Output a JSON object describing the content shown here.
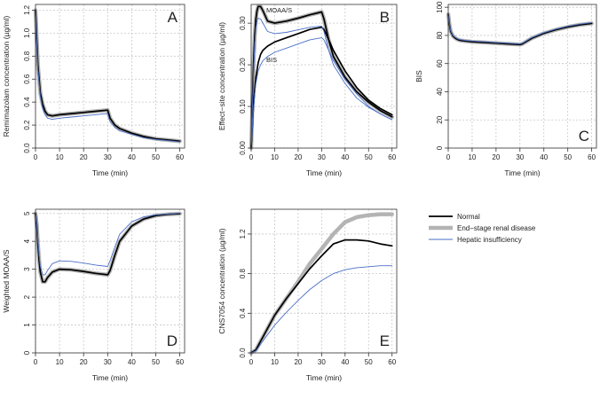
{
  "colors": {
    "normal": "#000000",
    "esrd": "#b4b4b4",
    "hepatic": "#4a6fc7",
    "grid": "#c8c8c8"
  },
  "legend": {
    "normal": "Normal",
    "esrd": "End−stage renal disease",
    "hepatic": "Hepatic insufficiency"
  },
  "chart_data": [
    {
      "id": "A",
      "type": "line",
      "panel_label": "A",
      "xlabel": "Time (min)",
      "ylabel": "Remimazolam concentration (µg/ml)",
      "xlim": [
        0,
        62
      ],
      "ylim": [
        0,
        1.25
      ],
      "xticks": [
        0,
        10,
        20,
        30,
        40,
        50,
        60
      ],
      "yticks": [
        {
          "v": 0,
          "t": "0.0"
        },
        {
          "v": 0.2,
          "t": "0.2"
        },
        {
          "v": 0.4,
          "t": "0.4"
        },
        {
          "v": 0.6,
          "t": "0.6"
        },
        {
          "v": 0.8,
          "t": "0.8"
        },
        {
          "v": 1.0,
          "t": "1.0"
        },
        {
          "v": 1.2,
          "t": "1.2"
        }
      ],
      "grid": true,
      "series": [
        {
          "name": "Normal",
          "x": [
            0,
            0.5,
            1,
            2,
            3,
            4,
            5,
            7,
            10,
            15,
            20,
            25,
            30,
            31,
            33,
            35,
            40,
            45,
            50,
            55,
            60
          ],
          "y": [
            1.2,
            0.95,
            0.72,
            0.48,
            0.38,
            0.32,
            0.29,
            0.28,
            0.29,
            0.3,
            0.31,
            0.32,
            0.33,
            0.26,
            0.2,
            0.17,
            0.13,
            0.1,
            0.08,
            0.07,
            0.06
          ]
        },
        {
          "name": "End−stage renal disease",
          "x": [
            0,
            0.5,
            1,
            2,
            3,
            4,
            5,
            7,
            10,
            15,
            20,
            25,
            30,
            31,
            33,
            35,
            40,
            45,
            50,
            55,
            60
          ],
          "y": [
            1.2,
            0.95,
            0.72,
            0.48,
            0.38,
            0.32,
            0.29,
            0.28,
            0.29,
            0.3,
            0.31,
            0.32,
            0.33,
            0.26,
            0.2,
            0.17,
            0.13,
            0.1,
            0.08,
            0.07,
            0.06
          ]
        },
        {
          "name": "Hepatic insufficiency",
          "x": [
            0,
            0.5,
            1,
            2,
            3,
            4,
            5,
            7,
            10,
            15,
            20,
            25,
            30,
            31,
            33,
            35,
            40,
            45,
            50,
            55,
            60
          ],
          "y": [
            1.2,
            0.93,
            0.69,
            0.45,
            0.34,
            0.29,
            0.26,
            0.25,
            0.26,
            0.27,
            0.28,
            0.29,
            0.3,
            0.23,
            0.18,
            0.15,
            0.12,
            0.09,
            0.075,
            0.065,
            0.055
          ]
        }
      ]
    },
    {
      "id": "B",
      "type": "line",
      "panel_label": "B",
      "xlabel": "Time (min)",
      "ylabel": "Effect−site concentration (µg/ml)",
      "xlim": [
        0,
        62
      ],
      "ylim": [
        0,
        0.345
      ],
      "xticks": [
        0,
        10,
        20,
        30,
        40,
        50,
        60
      ],
      "yticks": [
        {
          "v": 0,
          "t": "0.00"
        },
        {
          "v": 0.1,
          "t": "0.10"
        },
        {
          "v": 0.2,
          "t": "0.20"
        },
        {
          "v": 0.3,
          "t": "0.30"
        }
      ],
      "grid": true,
      "annotations": [
        "MOAA/S",
        "BIS"
      ],
      "series": [
        {
          "name": "Normal – MOAA/S",
          "x": [
            0,
            0.5,
            1,
            1.5,
            2,
            2.5,
            3,
            4,
            5,
            7,
            10,
            15,
            20,
            25,
            30,
            31,
            33,
            35,
            40,
            45,
            50,
            55,
            60
          ],
          "y": [
            0,
            0.1,
            0.2,
            0.27,
            0.31,
            0.33,
            0.34,
            0.34,
            0.33,
            0.305,
            0.3,
            0.305,
            0.312,
            0.32,
            0.327,
            0.31,
            0.26,
            0.22,
            0.17,
            0.135,
            0.11,
            0.09,
            0.075
          ]
        },
        {
          "name": "Normal – BIS",
          "x": [
            0,
            0.5,
            1,
            1.5,
            2,
            3,
            4,
            5,
            7,
            10,
            15,
            20,
            25,
            30,
            31,
            33,
            35,
            40,
            45,
            50,
            55,
            60
          ],
          "y": [
            0,
            0.05,
            0.1,
            0.14,
            0.17,
            0.205,
            0.225,
            0.235,
            0.245,
            0.255,
            0.265,
            0.275,
            0.285,
            0.29,
            0.285,
            0.26,
            0.235,
            0.185,
            0.145,
            0.115,
            0.095,
            0.08
          ]
        },
        {
          "name": "End−stage renal disease – MOAA/S",
          "x": [
            0,
            0.5,
            1,
            1.5,
            2,
            2.5,
            3,
            4,
            5,
            7,
            10,
            15,
            20,
            25,
            30,
            31,
            33,
            35,
            40,
            45,
            50,
            55,
            60
          ],
          "y": [
            0,
            0.1,
            0.2,
            0.27,
            0.31,
            0.33,
            0.34,
            0.34,
            0.33,
            0.305,
            0.3,
            0.305,
            0.312,
            0.32,
            0.327,
            0.31,
            0.26,
            0.22,
            0.17,
            0.135,
            0.11,
            0.09,
            0.075
          ]
        },
        {
          "name": "Hepatic insufficiency – MOAA/S",
          "x": [
            0,
            0.5,
            1,
            1.5,
            2,
            2.5,
            3,
            4,
            5,
            7,
            10,
            15,
            20,
            25,
            30,
            31,
            33,
            35,
            40,
            45,
            50,
            55,
            60
          ],
          "y": [
            0,
            0.09,
            0.18,
            0.25,
            0.29,
            0.305,
            0.312,
            0.31,
            0.3,
            0.28,
            0.275,
            0.278,
            0.284,
            0.29,
            0.293,
            0.28,
            0.235,
            0.2,
            0.155,
            0.12,
            0.098,
            0.082,
            0.068
          ]
        },
        {
          "name": "Hepatic insufficiency – BIS",
          "x": [
            0,
            0.5,
            1,
            1.5,
            2,
            3,
            4,
            5,
            7,
            10,
            15,
            20,
            25,
            30,
            31,
            33,
            35,
            40,
            45,
            50,
            55,
            60
          ],
          "y": [
            0,
            0.045,
            0.09,
            0.13,
            0.155,
            0.185,
            0.2,
            0.21,
            0.22,
            0.23,
            0.24,
            0.25,
            0.26,
            0.265,
            0.26,
            0.235,
            0.21,
            0.165,
            0.13,
            0.1,
            0.082,
            0.068
          ]
        }
      ]
    },
    {
      "id": "C",
      "type": "line",
      "panel_label": "C",
      "xlabel": "Time (min)",
      "ylabel": "BIS",
      "xlim": [
        0,
        62
      ],
      "ylim": [
        0,
        102
      ],
      "xticks": [
        0,
        10,
        20,
        30,
        40,
        50,
        60
      ],
      "yticks": [
        {
          "v": 0,
          "t": "0"
        },
        {
          "v": 20,
          "t": "20"
        },
        {
          "v": 40,
          "t": "40"
        },
        {
          "v": 60,
          "t": "60"
        },
        {
          "v": 80,
          "t": "80"
        },
        {
          "v": 100,
          "t": "100"
        }
      ],
      "grid": true,
      "series": [
        {
          "name": "Normal",
          "x": [
            0,
            0.5,
            1,
            2,
            3,
            4,
            5,
            7,
            10,
            15,
            20,
            25,
            30,
            31,
            33,
            35,
            40,
            45,
            50,
            55,
            60
          ],
          "y": [
            95,
            88,
            83,
            79.5,
            78,
            77,
            76.5,
            76,
            75.5,
            75,
            74.5,
            74,
            73.5,
            74,
            76,
            78,
            81.5,
            84,
            86,
            87.5,
            88.5
          ]
        },
        {
          "name": "End−stage renal disease",
          "x": [
            0,
            0.5,
            1,
            2,
            3,
            4,
            5,
            7,
            10,
            15,
            20,
            25,
            30,
            31,
            33,
            35,
            40,
            45,
            50,
            55,
            60
          ],
          "y": [
            95,
            88,
            83,
            79.5,
            78,
            77,
            76.5,
            76,
            75.5,
            75,
            74.5,
            74,
            73.5,
            74,
            76,
            78,
            81.5,
            84,
            86,
            87.5,
            88.5
          ]
        },
        {
          "name": "Hepatic insufficiency",
          "x": [
            0,
            0.5,
            1,
            2,
            3,
            4,
            5,
            7,
            10,
            15,
            20,
            25,
            30,
            31,
            33,
            35,
            40,
            45,
            50,
            55,
            60
          ],
          "y": [
            95,
            88.5,
            83.5,
            80,
            78.5,
            77.5,
            77,
            76.5,
            76,
            75.5,
            75,
            74.5,
            74,
            74.5,
            76.5,
            78.5,
            82,
            84.5,
            86.5,
            88,
            89
          ]
        }
      ]
    },
    {
      "id": "D",
      "type": "line",
      "panel_label": "D",
      "xlabel": "Time (min)",
      "ylabel": "Weighted MOAA/S",
      "xlim": [
        0,
        62
      ],
      "ylim": [
        0,
        5.15
      ],
      "xticks": [
        0,
        10,
        20,
        30,
        40,
        50,
        60
      ],
      "yticks": [
        {
          "v": 0,
          "t": "0"
        },
        {
          "v": 1,
          "t": "1"
        },
        {
          "v": 2,
          "t": "2"
        },
        {
          "v": 3,
          "t": "3"
        },
        {
          "v": 4,
          "t": "4"
        },
        {
          "v": 5,
          "t": "5"
        }
      ],
      "grid": true,
      "series": [
        {
          "name": "Normal",
          "x": [
            0,
            0.5,
            1,
            1.5,
            2,
            3,
            4,
            5,
            7,
            10,
            15,
            20,
            25,
            30,
            31,
            33,
            35,
            40,
            45,
            50,
            55,
            60
          ],
          "y": [
            5,
            4.6,
            3.9,
            3.3,
            2.9,
            2.55,
            2.55,
            2.7,
            2.9,
            3.0,
            2.98,
            2.92,
            2.85,
            2.8,
            2.95,
            3.5,
            4.0,
            4.55,
            4.8,
            4.92,
            4.97,
            4.99
          ]
        },
        {
          "name": "End−stage renal disease",
          "x": [
            0,
            0.5,
            1,
            1.5,
            2,
            3,
            4,
            5,
            7,
            10,
            15,
            20,
            25,
            30,
            31,
            33,
            35,
            40,
            45,
            50,
            55,
            60
          ],
          "y": [
            5,
            4.6,
            3.9,
            3.3,
            2.9,
            2.55,
            2.55,
            2.7,
            2.9,
            3.0,
            2.98,
            2.92,
            2.85,
            2.8,
            2.95,
            3.5,
            4.0,
            4.55,
            4.8,
            4.92,
            4.97,
            4.99
          ]
        },
        {
          "name": "Hepatic insufficiency",
          "x": [
            0,
            0.5,
            1,
            1.5,
            2,
            3,
            4,
            5,
            7,
            10,
            15,
            20,
            25,
            30,
            31,
            33,
            35,
            40,
            45,
            50,
            55,
            60
          ],
          "y": [
            5,
            4.65,
            4.05,
            3.5,
            3.1,
            2.8,
            2.8,
            2.95,
            3.2,
            3.3,
            3.28,
            3.22,
            3.15,
            3.1,
            3.3,
            3.8,
            4.25,
            4.7,
            4.88,
            4.95,
            4.98,
            5.0
          ]
        }
      ]
    },
    {
      "id": "E",
      "type": "line",
      "panel_label": "E",
      "xlabel": "Time (min)",
      "ylabel": "CNS7054 concentration (µg/ml)",
      "xlim": [
        0,
        62
      ],
      "ylim": [
        0,
        1.45
      ],
      "xticks": [
        0,
        10,
        20,
        30,
        40,
        50,
        60
      ],
      "yticks": [
        {
          "v": 0,
          "t": "0.0"
        },
        {
          "v": 0.4,
          "t": "0.4"
        },
        {
          "v": 0.8,
          "t": "0.8"
        },
        {
          "v": 1.2,
          "t": "1.2"
        }
      ],
      "grid": true,
      "series": [
        {
          "name": "Normal",
          "x": [
            0,
            2,
            5,
            10,
            15,
            20,
            25,
            30,
            35,
            40,
            45,
            50,
            55,
            60
          ],
          "y": [
            0,
            0.03,
            0.16,
            0.38,
            0.55,
            0.7,
            0.85,
            0.98,
            1.1,
            1.14,
            1.14,
            1.13,
            1.1,
            1.08
          ]
        },
        {
          "name": "End−stage renal disease",
          "x": [
            0,
            2,
            5,
            10,
            15,
            20,
            25,
            30,
            35,
            40,
            45,
            50,
            55,
            60
          ],
          "y": [
            0,
            0.03,
            0.16,
            0.38,
            0.55,
            0.72,
            0.9,
            1.05,
            1.2,
            1.32,
            1.37,
            1.39,
            1.4,
            1.4
          ]
        },
        {
          "name": "Hepatic insufficiency",
          "x": [
            0,
            2,
            5,
            10,
            15,
            20,
            25,
            30,
            35,
            40,
            45,
            50,
            55,
            60
          ],
          "y": [
            0,
            0.02,
            0.12,
            0.28,
            0.41,
            0.53,
            0.64,
            0.73,
            0.8,
            0.84,
            0.86,
            0.87,
            0.88,
            0.88
          ]
        }
      ]
    }
  ]
}
